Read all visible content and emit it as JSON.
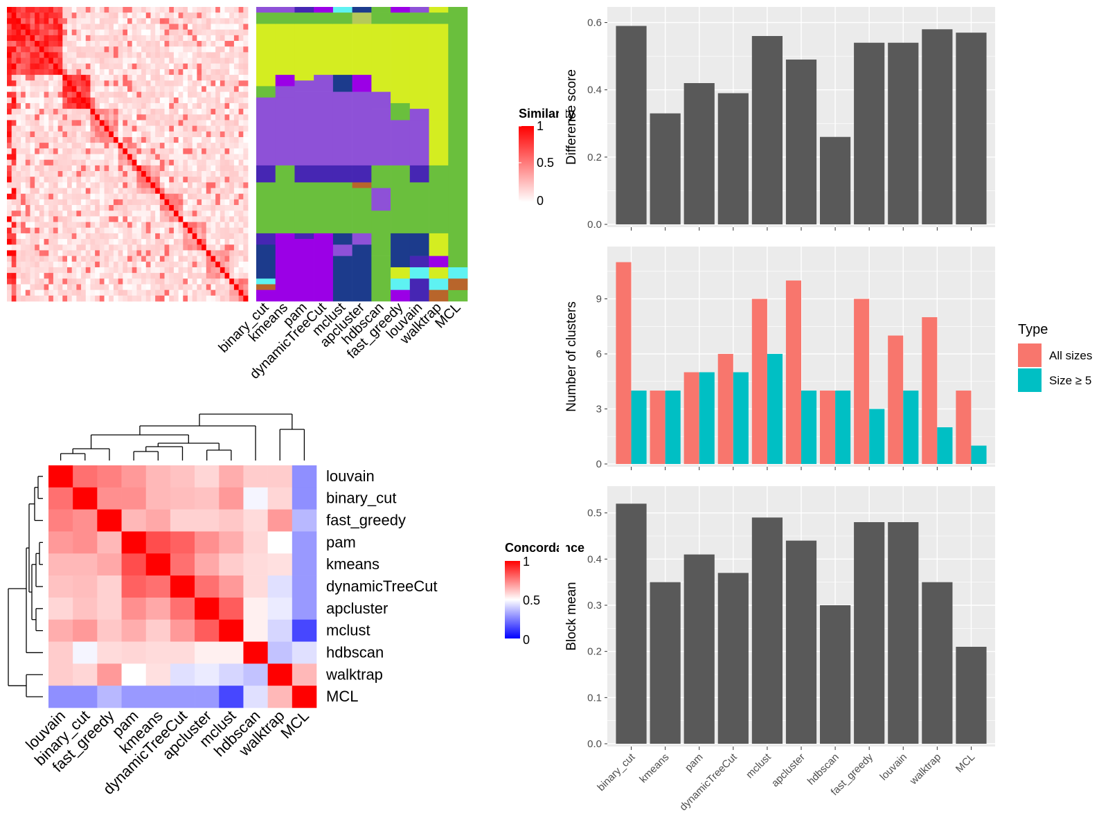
{
  "colors": {
    "panel_bg": "#ebebeb",
    "grid": "#ffffff",
    "bar": "#595959",
    "all_sizes": "#f8766d",
    "size5": "#00bfc4",
    "heat_high": "#ff0000",
    "heat_low": "#0000ff",
    "purple": "#8e51d7",
    "lime": "#d4ed21",
    "green": "#6abf3d",
    "navy": "#1c3b8c",
    "violet": "#9b00e6",
    "indigo": "#4626b3",
    "cyan": "#5ef2f2",
    "brown": "#b8652b",
    "olive": "#b5c95a"
  },
  "methods": [
    "binary_cut",
    "kmeans",
    "pam",
    "dynamicTreeCut",
    "mclust",
    "apcluster",
    "hdbscan",
    "fast_greedy",
    "louvain",
    "walktrap",
    "MCL"
  ],
  "top_left": {
    "similarity_legend": {
      "title": "Similarity",
      "ticks": [
        "1",
        "0.5",
        "0"
      ]
    }
  },
  "bottom_left": {
    "order": [
      "louvain",
      "binary_cut",
      "fast_greedy",
      "pam",
      "kmeans",
      "dynamicTreeCut",
      "apcluster",
      "mclust",
      "hdbscan",
      "walktrap",
      "MCL"
    ],
    "legend": {
      "title": "Concordance",
      "ticks": [
        "1",
        "0.5",
        "0"
      ]
    },
    "matrix": [
      [
        1.0,
        0.78,
        0.75,
        0.7,
        0.64,
        0.62,
        0.58,
        0.66,
        0.6,
        0.6,
        0.28
      ],
      [
        0.78,
        1.0,
        0.72,
        0.72,
        0.64,
        0.63,
        0.62,
        0.7,
        0.48,
        0.58,
        0.28
      ],
      [
        0.75,
        0.72,
        1.0,
        0.64,
        0.67,
        0.59,
        0.59,
        0.61,
        0.57,
        0.7,
        0.36
      ],
      [
        0.7,
        0.72,
        0.64,
        1.0,
        0.85,
        0.81,
        0.72,
        0.66,
        0.58,
        0.5,
        0.3
      ],
      [
        0.64,
        0.64,
        0.67,
        0.85,
        1.0,
        0.78,
        0.67,
        0.6,
        0.57,
        0.56,
        0.3
      ],
      [
        0.62,
        0.63,
        0.59,
        0.81,
        0.78,
        1.0,
        0.78,
        0.7,
        0.57,
        0.44,
        0.3
      ],
      [
        0.58,
        0.62,
        0.59,
        0.72,
        0.67,
        0.78,
        1.0,
        0.82,
        0.53,
        0.46,
        0.3
      ],
      [
        0.66,
        0.7,
        0.61,
        0.66,
        0.6,
        0.7,
        0.82,
        1.0,
        0.53,
        0.42,
        0.14
      ],
      [
        0.6,
        0.48,
        0.57,
        0.58,
        0.57,
        0.57,
        0.53,
        0.53,
        1.0,
        0.38,
        0.44
      ],
      [
        0.6,
        0.58,
        0.7,
        0.5,
        0.56,
        0.44,
        0.46,
        0.42,
        0.38,
        1.0,
        0.64
      ],
      [
        0.28,
        0.28,
        0.36,
        0.3,
        0.3,
        0.3,
        0.3,
        0.14,
        0.44,
        0.64,
        1.0
      ]
    ]
  },
  "chart_data": [
    {
      "type": "bar",
      "categories": [
        "binary_cut",
        "kmeans",
        "pam",
        "dynamicTreeCut",
        "mclust",
        "apcluster",
        "hdbscan",
        "fast_greedy",
        "louvain",
        "walktrap",
        "MCL"
      ],
      "values": [
        0.59,
        0.33,
        0.42,
        0.39,
        0.56,
        0.49,
        0.26,
        0.54,
        0.54,
        0.58,
        0.57
      ],
      "ylabel": "Difference score",
      "ylim": [
        0,
        0.6
      ],
      "yticks": [
        "0.0",
        "0.2",
        "0.4",
        "0.6"
      ],
      "ytick_values": [
        0,
        0.2,
        0.4,
        0.6
      ],
      "grid": true
    },
    {
      "type": "bar",
      "categories": [
        "binary_cut",
        "kmeans",
        "pam",
        "dynamicTreeCut",
        "mclust",
        "apcluster",
        "hdbscan",
        "fast_greedy",
        "louvain",
        "walktrap",
        "MCL"
      ],
      "series": [
        {
          "name": "All sizes",
          "values": [
            11,
            4,
            5,
            6,
            9,
            10,
            4,
            9,
            7,
            8,
            4
          ]
        },
        {
          "name": "Size ≥ 5",
          "values": [
            4,
            4,
            5,
            5,
            6,
            4,
            4,
            3,
            4,
            2,
            1
          ]
        }
      ],
      "ylabel": "Number of clusters",
      "ylim": [
        0,
        11
      ],
      "yticks": [
        "0",
        "3",
        "6",
        "9"
      ],
      "ytick_values": [
        0,
        3,
        6,
        9
      ],
      "legend_title": "Type",
      "legend_position": "right",
      "grid": true
    },
    {
      "type": "bar",
      "categories": [
        "binary_cut",
        "kmeans",
        "pam",
        "dynamicTreeCut",
        "mclust",
        "apcluster",
        "hdbscan",
        "fast_greedy",
        "louvain",
        "walktrap",
        "MCL"
      ],
      "values": [
        0.52,
        0.35,
        0.41,
        0.37,
        0.49,
        0.44,
        0.3,
        0.48,
        0.48,
        0.35,
        0.21
      ],
      "ylabel": "Block mean",
      "ylim": [
        0,
        0.52
      ],
      "yticks": [
        "0.0",
        "0.1",
        "0.2",
        "0.3",
        "0.4",
        "0.5"
      ],
      "ytick_values": [
        0,
        0.1,
        0.2,
        0.3,
        0.4,
        0.5
      ],
      "grid": true
    }
  ]
}
